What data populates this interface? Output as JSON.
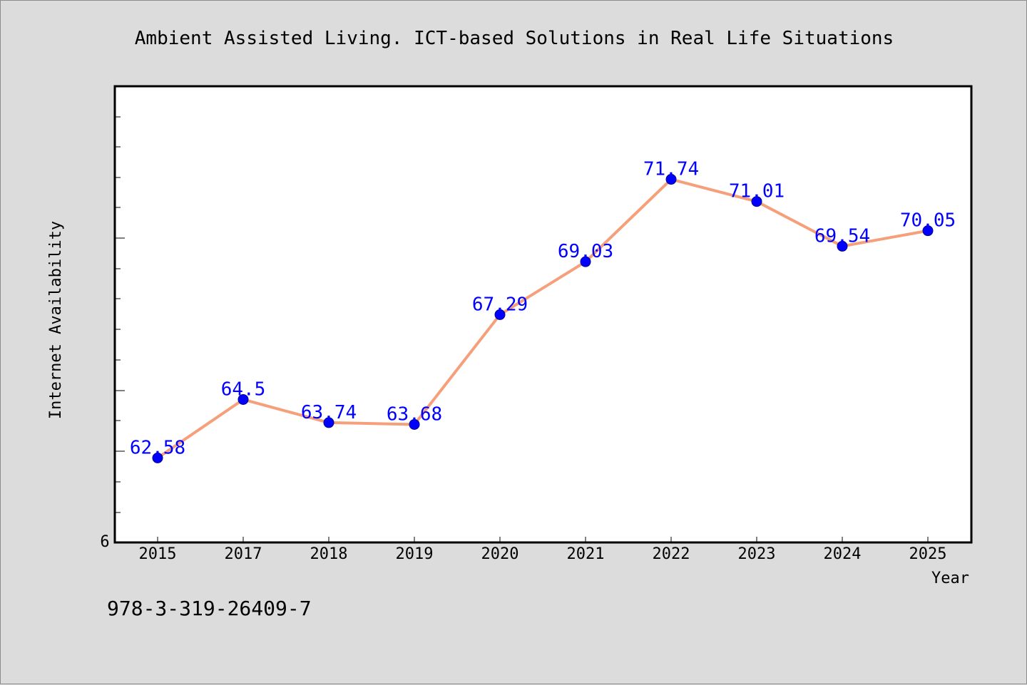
{
  "chart_data": {
    "type": "line",
    "title": "Ambient Assisted Living. ICT-based Solutions in Real Life Situations",
    "xlabel": "Year",
    "ylabel": "Internet Availability",
    "categories": [
      "2015",
      "2017",
      "2018",
      "2019",
      "2020",
      "2021",
      "2022",
      "2023",
      "2024",
      "2025"
    ],
    "series": [
      {
        "values": [
          62.58,
          64.5,
          63.74,
          63.68,
          67.29,
          69.03,
          71.74,
          71.01,
          69.54,
          70.05
        ],
        "labels": [
          "62.58",
          "64.5",
          "63.74",
          "63.68",
          "67.29",
          "69.03",
          "71.74",
          "71.01",
          "69.54",
          "70.05"
        ]
      }
    ],
    "y_tick_labels": [
      "6"
    ],
    "ylim": [
      59.8,
      74.8
    ],
    "line_color": "#f5a07a",
    "marker_color": "#0000ff",
    "label_color": "#0000ff",
    "grid": false,
    "legend": "none"
  },
  "footer_text": "978-3-319-26409-7"
}
